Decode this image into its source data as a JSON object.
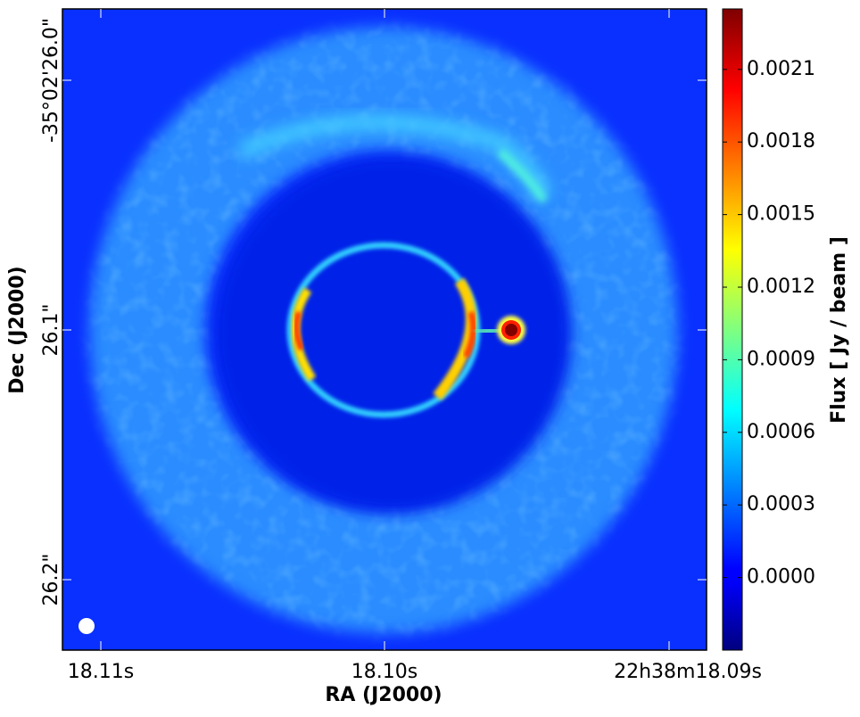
{
  "chart_data": {
    "type": "image",
    "xlabel": "RA (J2000)",
    "ylabel": "Dec (J2000)",
    "xtick_labels": [
      "18.11s",
      "18.10s",
      "22h38m18.09s"
    ],
    "ytick_labels": [
      "-35°02'26.0\"",
      "26.1\"",
      "26.2\""
    ],
    "colorbar_label": "Flux [ Jy / beam ]",
    "colormap": "jet",
    "clim": [
      -0.0003,
      0.00235
    ],
    "cticks": [
      {
        "value": 0,
        "label": "0.0000"
      },
      0.0003,
      0.0006,
      0.0009,
      0.0012,
      0.0015,
      0.0018,
      0.0021
    ]
  }
}
